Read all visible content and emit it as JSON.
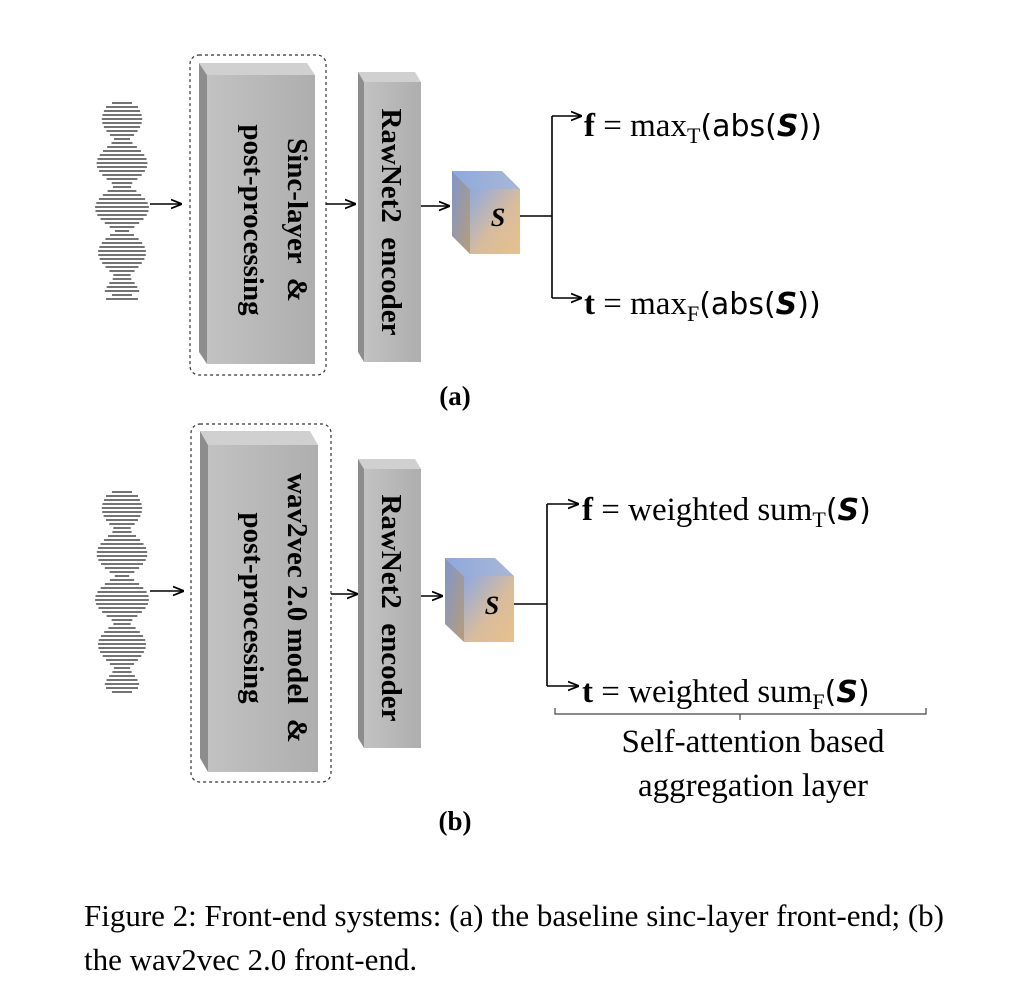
{
  "panels": [
    {
      "label": "(a)",
      "block1_lines": [
        "Sinc-layer  &",
        "post-processing"
      ],
      "encoder": "RawNet2  encoder",
      "cube_label": "S",
      "f_eq": {
        "var": "f",
        "op": " = ",
        "fn": "max",
        "sub": "T",
        "open": "(abs(",
        "arg": "S",
        "close": "))"
      },
      "t_eq": {
        "var": "t",
        "op": " = ",
        "fn": "max",
        "sub": "F",
        "open": "(abs(",
        "arg": "S",
        "close": "))"
      }
    },
    {
      "label": "(b)",
      "block1_lines": [
        "wav2vec 2.0 model  &",
        "post-processing"
      ],
      "encoder": "RawNet2  encoder",
      "cube_label": "S",
      "f_eq": {
        "var": "f",
        "op": " = ",
        "fn": "weighted sum",
        "sub": "T",
        "open": "(",
        "arg": "S",
        "close": ")"
      },
      "t_eq": {
        "var": "t",
        "op": " = ",
        "fn": "weighted sum",
        "sub": "F",
        "open": "(",
        "arg": "S",
        "close": ")"
      },
      "brace_lines": [
        "Self-attention based",
        "aggregation layer"
      ]
    }
  ],
  "caption": "Figure 2: Front-end systems: (a) the baseline sinc-layer front-end; (b) the wav2vec 2.0 front-end.",
  "colors": {
    "block_front": "#b7b7b7",
    "block_side": "#8f8f8f",
    "block_top": "#d2d2d2",
    "cube_blue": "#8fa9de",
    "cube_tan": "#e3bf8f"
  }
}
